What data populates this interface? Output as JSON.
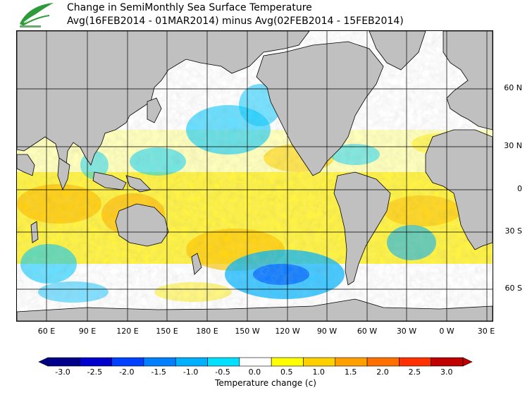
{
  "title": {
    "line1": "Change in SemiMonthly Sea Surface Temperature",
    "line2": "Avg(16FEB2014 - 01MAR2014) minus Avg(02FEB2014 - 15FEB2014)"
  },
  "logo": {
    "icon": "leaf-logo-icon",
    "text": ""
  },
  "map": {
    "lat_labels": [
      "60 N",
      "30 N",
      "0",
      "30 S",
      "60 S"
    ],
    "lon_labels": [
      "60 E",
      "90 E",
      "120 E",
      "150 E",
      "180 E",
      "150 W",
      "120 W",
      "90 W",
      "60 W",
      "30 W",
      "0 W",
      "30 E"
    ],
    "land_color": "#c0c0c0",
    "gridlines": true
  },
  "legend": {
    "title": "Temperature change  (c)",
    "ticks": [
      "-3.0",
      "-2.5",
      "-2.0",
      "-1.5",
      "-1.0",
      "-0.5",
      "0.0",
      "0.5",
      "1.0",
      "1.5",
      "2.0",
      "2.5",
      "3.0"
    ],
    "colors": [
      "#00008b",
      "#0000cd",
      "#0040ff",
      "#0080ff",
      "#00b0ff",
      "#00e0ff",
      "#ffffff",
      "#ffff00",
      "#ffd000",
      "#ffa000",
      "#ff7000",
      "#ff3000",
      "#c00000"
    ]
  }
}
